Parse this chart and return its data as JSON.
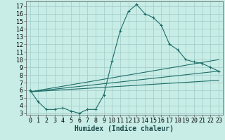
{
  "xlabel": "Humidex (Indice chaleur)",
  "background_color": "#c8ece6",
  "grid_color": "#a0ccc8",
  "line_color": "#1e6e68",
  "xlim": [
    -0.5,
    23.5
  ],
  "ylim": [
    2.8,
    17.6
  ],
  "xticks": [
    0,
    1,
    2,
    3,
    4,
    5,
    6,
    7,
    8,
    9,
    10,
    11,
    12,
    13,
    14,
    15,
    16,
    17,
    18,
    19,
    20,
    21,
    22,
    23
  ],
  "yticks": [
    3,
    4,
    5,
    6,
    7,
    8,
    9,
    10,
    11,
    12,
    13,
    14,
    15,
    16,
    17
  ],
  "main_x": [
    0,
    1,
    2,
    3,
    4,
    5,
    6,
    7,
    8,
    9,
    10,
    11,
    12,
    13,
    14,
    15,
    16,
    17,
    18,
    19,
    20,
    21,
    22,
    23
  ],
  "main_y": [
    6.0,
    4.5,
    3.5,
    3.5,
    3.7,
    3.3,
    3.0,
    3.5,
    3.5,
    5.4,
    9.8,
    13.8,
    16.3,
    17.2,
    16.0,
    15.5,
    14.5,
    12.0,
    11.3,
    10.0,
    9.7,
    9.5,
    9.0,
    8.5
  ],
  "trend1_x": [
    0,
    23
  ],
  "trend1_y": [
    5.8,
    10.0
  ],
  "trend2_x": [
    0,
    23
  ],
  "trend2_y": [
    5.8,
    8.5
  ],
  "trend3_x": [
    0,
    23
  ],
  "trend3_y": [
    5.8,
    7.3
  ]
}
